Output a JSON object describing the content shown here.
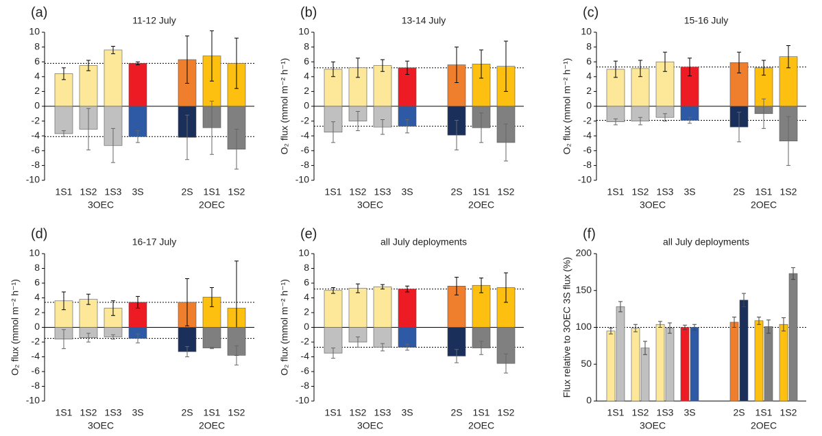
{
  "chart_data": [
    {
      "type": "bar",
      "label": "(a)",
      "title": "11-12 July",
      "categories": [
        "1S1",
        "1S2",
        "1S3",
        "3S",
        null,
        "2S",
        "1S1",
        "1S2"
      ],
      "groups": [
        "3OEC",
        "2OEC"
      ],
      "ylim": [
        -10,
        10
      ],
      "yticks": [
        -10,
        -8,
        -6,
        -4,
        -2,
        0,
        2,
        4,
        6,
        8,
        10
      ],
      "series": [
        {
          "values": [
            4.4,
            5.5,
            7.6,
            5.8,
            null,
            6.3,
            6.8,
            5.8
          ],
          "errors": [
            0.8,
            0.7,
            0.5,
            0.2,
            null,
            3.2,
            3.4,
            3.4
          ],
          "colors": [
            "#fde89a",
            "#fde89a",
            "#fde89a",
            "#ed1c24",
            null,
            "#f07f2d",
            "#fdbf10",
            "#fdbf10"
          ]
        },
        {
          "values": [
            -3.7,
            -3.1,
            -5.3,
            -4.1,
            null,
            -4.2,
            -2.9,
            -5.8
          ],
          "errors": [
            0.4,
            2.8,
            2.3,
            0.8,
            null,
            3.0,
            3.6,
            2.7
          ],
          "colors": [
            "#c0c0c0",
            "#c0c0c0",
            "#c0c0c0",
            "#2e5aa5",
            null,
            "#1b2f5b",
            "#7f7f7f",
            "#808080"
          ]
        }
      ]
    },
    {
      "type": "bar",
      "label": "(b)",
      "title": "13-14 July",
      "ylabel": "O₂ flux (mmol m⁻² h⁻¹)",
      "categories": [
        "1S1",
        "1S2",
        "1S3",
        "3S",
        null,
        "2S",
        "1S1",
        "1S2"
      ],
      "groups": [
        "3OEC",
        "2OEC"
      ],
      "ylim": [
        -10,
        10
      ],
      "yticks": [
        -10,
        -8,
        -6,
        -4,
        -2,
        0,
        2,
        4,
        6,
        8,
        10
      ],
      "series": [
        {
          "values": [
            5.0,
            5.2,
            5.5,
            5.2,
            null,
            5.6,
            5.7,
            5.4
          ],
          "errors": [
            1.0,
            1.3,
            0.8,
            0.9,
            null,
            2.4,
            1.9,
            3.4
          ],
          "colors": [
            "#fde89a",
            "#fde89a",
            "#fde89a",
            "#ed1c24",
            null,
            "#f07f2d",
            "#fdbf10",
            "#fdbf10"
          ]
        },
        {
          "values": [
            -3.5,
            -2.0,
            -2.8,
            -2.7,
            null,
            -3.9,
            -2.9,
            -4.9
          ],
          "errors": [
            1.4,
            1.3,
            1.0,
            0.9,
            null,
            2.0,
            2.0,
            2.5
          ],
          "colors": [
            "#c0c0c0",
            "#c0c0c0",
            "#c0c0c0",
            "#2e5aa5",
            null,
            "#1b2f5b",
            "#7f7f7f",
            "#808080"
          ]
        }
      ]
    },
    {
      "type": "bar",
      "label": "(c)",
      "title": "15-16 July",
      "ylabel": "O₂ flux (mmol m⁻² h⁻¹)",
      "categories": [
        "1S1",
        "1S2",
        "1S3",
        "3S",
        null,
        "2S",
        "1S1",
        "1S2"
      ],
      "groups": [
        "3OEC",
        "2OEC"
      ],
      "ylim": [
        -10,
        10
      ],
      "yticks": [
        -10,
        -8,
        -6,
        -4,
        -2,
        0,
        2,
        4,
        6,
        8,
        10
      ],
      "series": [
        {
          "values": [
            5.0,
            5.1,
            6.0,
            5.3,
            null,
            5.9,
            5.2,
            6.7
          ],
          "errors": [
            1.1,
            1.1,
            1.3,
            1.2,
            null,
            1.4,
            1.0,
            1.5
          ],
          "colors": [
            "#fde89a",
            "#fde89a",
            "#fde89a",
            "#ed1c24",
            null,
            "#f07f2d",
            "#fdbf10",
            "#fdbf10"
          ]
        },
        {
          "values": [
            -2.1,
            -2.0,
            -1.5,
            -1.9,
            null,
            -2.8,
            -1.0,
            -4.7
          ],
          "errors": [
            0.4,
            0.5,
            0.5,
            0.4,
            null,
            2.0,
            2.0,
            3.3
          ],
          "colors": [
            "#c0c0c0",
            "#c0c0c0",
            "#c0c0c0",
            "#2e5aa5",
            null,
            "#1b2f5b",
            "#7f7f7f",
            "#808080"
          ]
        }
      ]
    },
    {
      "type": "bar",
      "label": "(d)",
      "title": "16-17 July",
      "ylabel": "O₂ flux (mmol m⁻² h⁻¹)",
      "categories": [
        "1S1",
        "1S2",
        "1S3",
        "3S",
        null,
        "2S",
        "1S1",
        "1S2"
      ],
      "groups": [
        "3OEC",
        "2OEC"
      ],
      "ylim": [
        -10,
        10
      ],
      "yticks": [
        -10,
        -8,
        -6,
        -4,
        -2,
        0,
        2,
        4,
        6,
        8,
        10
      ],
      "series": [
        {
          "values": [
            3.6,
            3.8,
            2.6,
            3.4,
            null,
            3.4,
            4.1,
            2.6
          ],
          "errors": [
            1.2,
            0.7,
            1.0,
            0.8,
            null,
            3.2,
            1.3,
            6.4
          ],
          "colors": [
            "#fde89a",
            "#fde89a",
            "#fde89a",
            "#ed1c24",
            null,
            "#f07f2d",
            "#fdbf10",
            "#fdbf10"
          ]
        },
        {
          "values": [
            -1.6,
            -1.4,
            -1.3,
            -1.5,
            null,
            -3.3,
            -2.8,
            -3.8
          ],
          "errors": [
            1.3,
            0.6,
            0.3,
            0.6,
            null,
            0.7,
            0.1,
            1.3
          ],
          "colors": [
            "#c0c0c0",
            "#c0c0c0",
            "#c0c0c0",
            "#2e5aa5",
            null,
            "#1b2f5b",
            "#7f7f7f",
            "#808080"
          ]
        }
      ]
    },
    {
      "type": "bar",
      "label": "(e)",
      "title": "all July deployments",
      "ylabel": "O₂ flux (mmol m⁻² h⁻¹)",
      "categories": [
        "1S1",
        "1S2",
        "1S3",
        "3S",
        null,
        "2S",
        "1S1",
        "1S2"
      ],
      "groups": [
        "3OEC",
        "2OEC"
      ],
      "ylim": [
        -10,
        10
      ],
      "yticks": [
        -10,
        -8,
        -6,
        -4,
        -2,
        0,
        2,
        4,
        6,
        8,
        10
      ],
      "series": [
        {
          "values": [
            5.0,
            5.3,
            5.5,
            5.2,
            null,
            5.6,
            5.7,
            5.4
          ],
          "errors": [
            0.4,
            0.6,
            0.3,
            0.4,
            null,
            1.2,
            1.0,
            2.0
          ],
          "colors": [
            "#fde89a",
            "#fde89a",
            "#fde89a",
            "#ed1c24",
            null,
            "#f07f2d",
            "#fdbf10",
            "#fdbf10"
          ]
        },
        {
          "values": [
            -3.5,
            -2.0,
            -2.7,
            -2.7,
            null,
            -3.9,
            -2.8,
            -4.9
          ],
          "errors": [
            0.7,
            0.7,
            0.5,
            0.4,
            null,
            0.9,
            0.9,
            1.3
          ],
          "colors": [
            "#c0c0c0",
            "#c0c0c0",
            "#c0c0c0",
            "#2e5aa5",
            null,
            "#1b2f5b",
            "#7f7f7f",
            "#808080"
          ]
        }
      ]
    },
    {
      "type": "grouped_bar",
      "label": "(f)",
      "title": "all July deployments",
      "ylabel": "Flux relative to 3OEC 3S flux (%)",
      "categories": [
        "1S1",
        "1S2",
        "1S3",
        "3S",
        null,
        "2S",
        "1S1",
        "1S2"
      ],
      "groups": [
        "3OEC",
        "2OEC"
      ],
      "ylim": [
        0,
        200
      ],
      "yticks": [
        0,
        50,
        100,
        150,
        200
      ],
      "series": [
        {
          "values": [
            95,
            99,
            104,
            100,
            null,
            107,
            109,
            104
          ],
          "errors": [
            4,
            5,
            4,
            3,
            null,
            7,
            5,
            9
          ],
          "colors": [
            "#fde89a",
            "#fde89a",
            "#fde89a",
            "#ed1c24",
            null,
            "#f07f2d",
            "#fdbf10",
            "#fdbf10"
          ]
        },
        {
          "values": [
            128,
            72,
            99,
            100,
            null,
            137,
            101,
            173
          ],
          "errors": [
            7,
            9,
            7,
            4,
            null,
            9,
            9,
            8
          ],
          "colors": [
            "#c0c0c0",
            "#c0c0c0",
            "#c0c0c0",
            "#2e5aa5",
            null,
            "#1b2f5b",
            "#7f7f7f",
            "#808080"
          ]
        }
      ]
    }
  ]
}
